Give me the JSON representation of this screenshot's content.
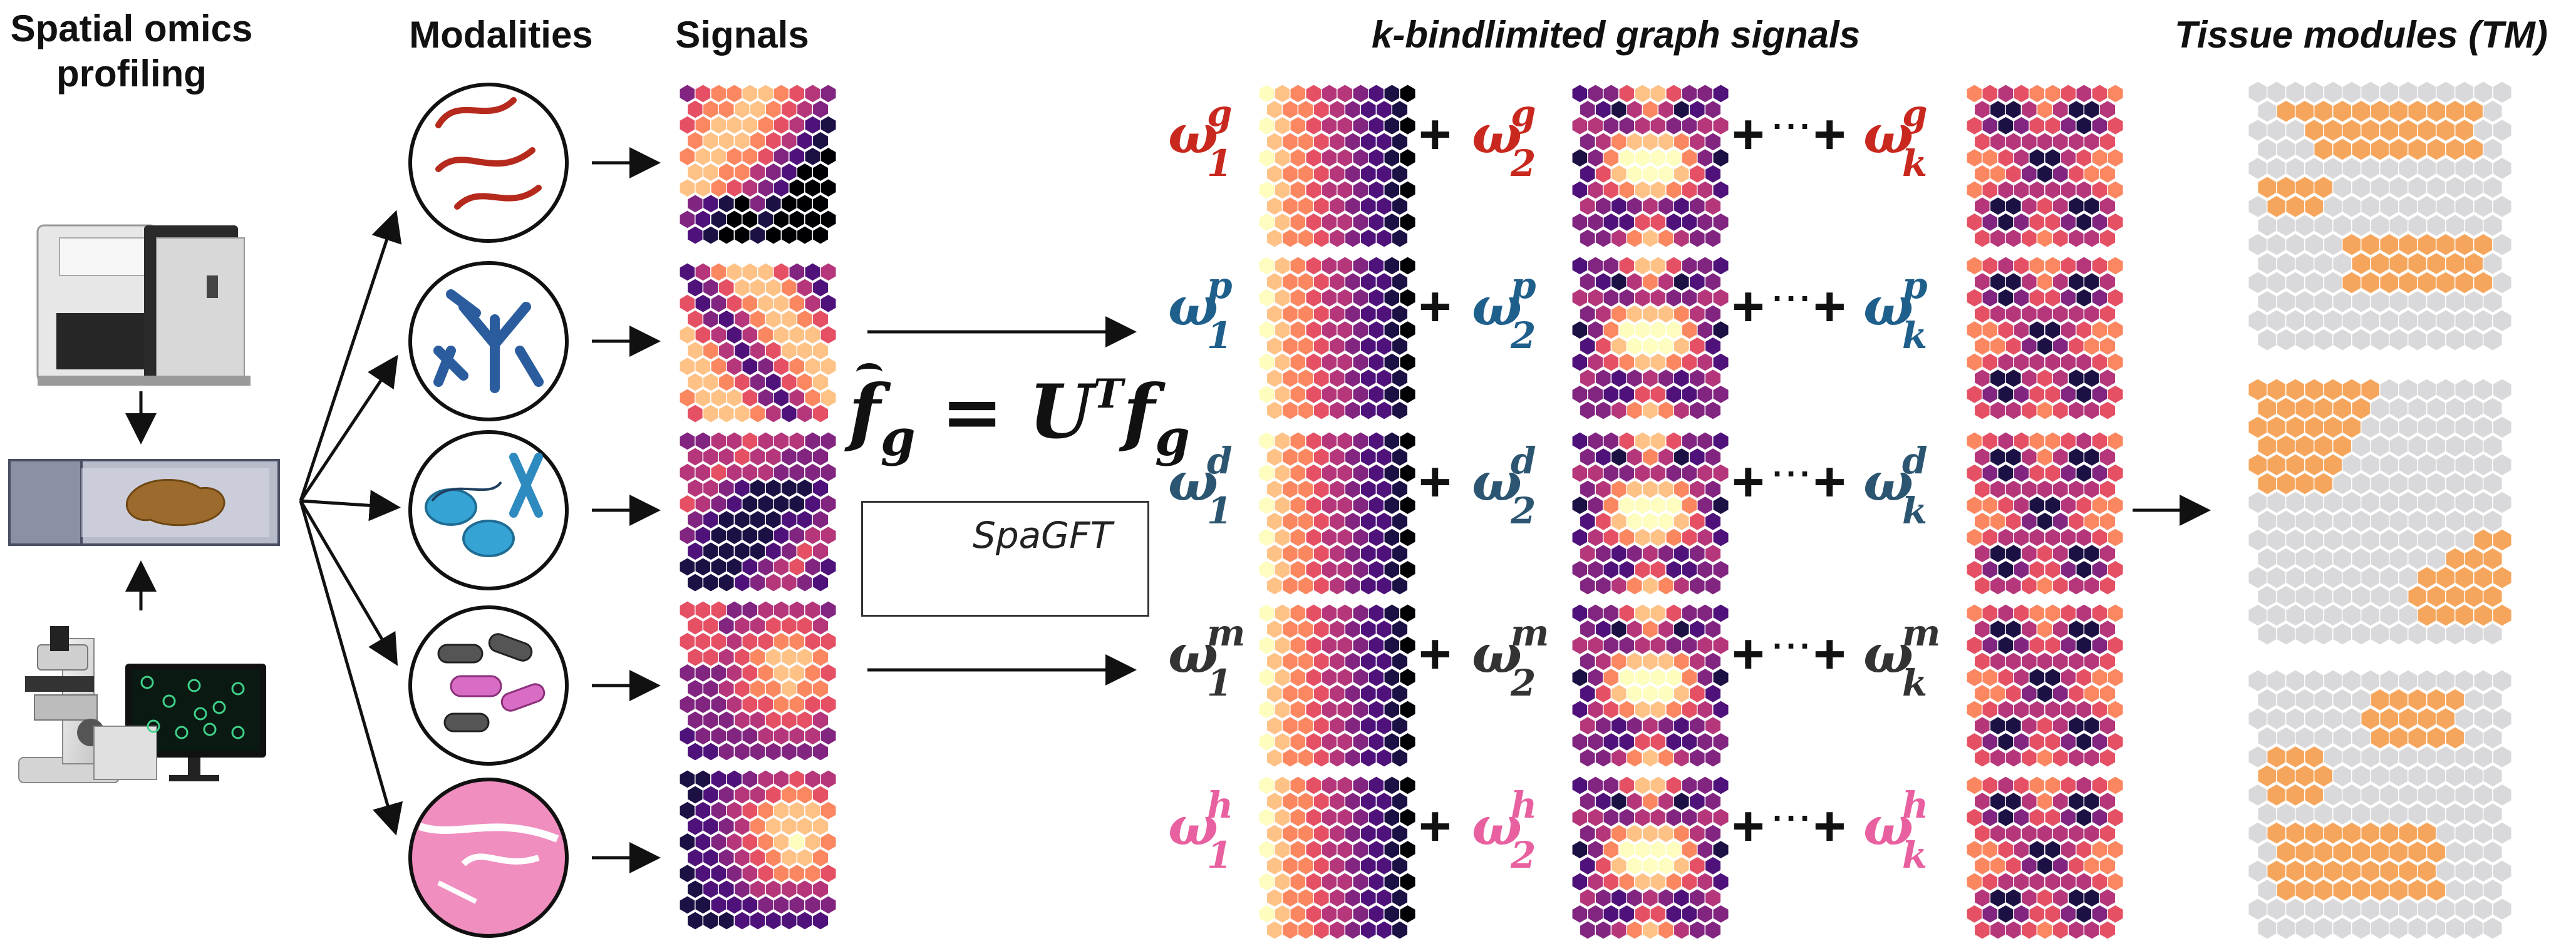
{
  "headers": {
    "spatial_omics": "Spatial omics",
    "profiling": "profiling",
    "modalities": "Modalities",
    "signals": "Signals",
    "bandlimited": "k-bindlimited graph signals",
    "tissue_modules": "Tissue modules (TM)"
  },
  "equation": {
    "f": "f",
    "g": "g",
    "eq": " = ",
    "U": "U",
    "T": "T"
  },
  "logo": {
    "text": "SpaGFT"
  },
  "omega": {
    "symbol": "ω",
    "rows": [
      {
        "sup": "g",
        "color": "#c8281e"
      },
      {
        "sup": "p",
        "color": "#1f5f8b"
      },
      {
        "sup": "d",
        "color": "#2b5570"
      },
      {
        "sup": "m",
        "color": "#333333"
      },
      {
        "sup": "h",
        "color": "#e860a0"
      }
    ],
    "subs": [
      "1",
      "2",
      "k"
    ]
  },
  "operators": {
    "plus": "+",
    "dots": "···"
  },
  "colors": {
    "tm_gray": "#d9d9dc",
    "tm_orange": "#f6a65c",
    "magma": [
      "#000004",
      "#1c1044",
      "#4f127b",
      "#812581",
      "#b5367a",
      "#e55064",
      "#fb8761",
      "#fec287",
      "#fcfdbf"
    ]
  }
}
